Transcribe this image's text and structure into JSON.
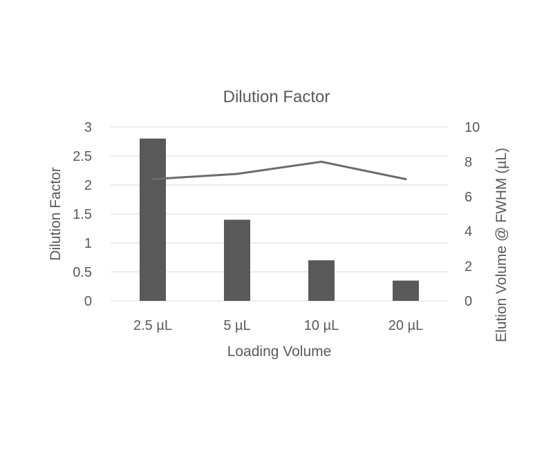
{
  "chart_data": {
    "type": "bar",
    "title": "Dilution Factor",
    "xlabel": "Loading Volume",
    "ylabel": "Dilution Factor",
    "y2label": "Elution Volume @ FWHM (µL)",
    "categories": [
      "2.5 µL",
      "5 µL",
      "10 µL",
      "20 µL"
    ],
    "ylim": [
      0,
      3
    ],
    "y2lim": [
      0,
      10
    ],
    "yticks": [
      "0",
      "0.5",
      "1",
      "1.5",
      "2",
      "2.5",
      "3"
    ],
    "y2ticks": [
      "0",
      "2",
      "4",
      "6",
      "8",
      "10"
    ],
    "grid": true,
    "legend": "none",
    "series": [
      {
        "type": "bar",
        "axis": "left",
        "color": "#595959",
        "values": [
          2.8,
          1.4,
          0.7,
          0.35
        ]
      },
      {
        "type": "line",
        "axis": "right",
        "color": "#6b6b6b",
        "values": [
          7.0,
          7.3,
          8.0,
          7.0
        ]
      }
    ]
  }
}
